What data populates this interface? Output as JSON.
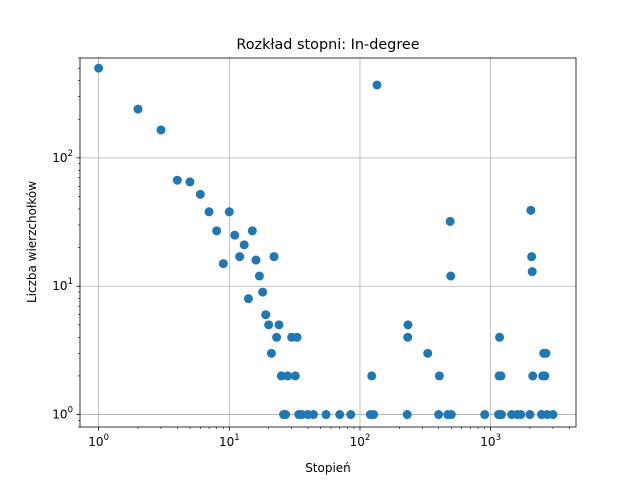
{
  "chart_data": {
    "type": "scatter",
    "title": "Rozkład stopni: In-degree",
    "xlabel": "Stopień",
    "ylabel": "Liczba wierzchołków",
    "xscale": "log",
    "yscale": "log",
    "xlim": [
      0.72,
      4500
    ],
    "ylim": [
      0.8,
      600
    ],
    "grid": true,
    "marker_color": "#1f77b4",
    "x_ticks": [
      {
        "value": 1,
        "base": "10",
        "exp": "0"
      },
      {
        "value": 10,
        "base": "10",
        "exp": "1"
      },
      {
        "value": 100,
        "base": "10",
        "exp": "2"
      },
      {
        "value": 1000,
        "base": "10",
        "exp": "3"
      }
    ],
    "y_ticks": [
      {
        "value": 1,
        "base": "10",
        "exp": "0"
      },
      {
        "value": 10,
        "base": "10",
        "exp": "1"
      },
      {
        "value": 100,
        "base": "10",
        "exp": "2"
      }
    ],
    "points": [
      [
        1,
        500
      ],
      [
        2,
        240
      ],
      [
        3,
        165
      ],
      [
        4,
        67
      ],
      [
        5,
        65
      ],
      [
        6,
        52
      ],
      [
        7,
        38
      ],
      [
        8,
        27
      ],
      [
        9,
        15
      ],
      [
        10,
        38
      ],
      [
        11,
        25
      ],
      [
        12,
        17
      ],
      [
        13,
        21
      ],
      [
        14,
        8
      ],
      [
        15,
        27
      ],
      [
        16,
        16
      ],
      [
        17,
        12
      ],
      [
        18,
        9
      ],
      [
        19,
        6
      ],
      [
        20,
        5
      ],
      [
        21,
        3
      ],
      [
        22,
        17
      ],
      [
        23,
        4
      ],
      [
        24,
        5
      ],
      [
        25,
        2
      ],
      [
        26,
        1
      ],
      [
        27,
        1
      ],
      [
        28,
        2
      ],
      [
        30,
        4
      ],
      [
        32,
        2
      ],
      [
        33,
        4
      ],
      [
        34,
        1
      ],
      [
        36,
        1
      ],
      [
        40,
        1
      ],
      [
        44,
        1
      ],
      [
        55,
        1
      ],
      [
        70,
        1
      ],
      [
        85,
        1
      ],
      [
        120,
        1
      ],
      [
        123,
        2
      ],
      [
        127,
        1
      ],
      [
        135,
        370
      ],
      [
        230,
        1
      ],
      [
        232,
        4
      ],
      [
        233,
        5
      ],
      [
        330,
        3
      ],
      [
        400,
        1
      ],
      [
        405,
        2
      ],
      [
        470,
        1
      ],
      [
        490,
        32
      ],
      [
        495,
        12
      ],
      [
        500,
        1
      ],
      [
        900,
        1
      ],
      [
        1150,
        1
      ],
      [
        1160,
        2
      ],
      [
        1170,
        4
      ],
      [
        1180,
        1
      ],
      [
        1200,
        2
      ],
      [
        1210,
        1
      ],
      [
        1450,
        1
      ],
      [
        1600,
        1
      ],
      [
        1700,
        1
      ],
      [
        2000,
        1
      ],
      [
        2030,
        39
      ],
      [
        2060,
        17
      ],
      [
        2080,
        13
      ],
      [
        2100,
        2
      ],
      [
        2450,
        1
      ],
      [
        2500,
        2
      ],
      [
        2550,
        3
      ],
      [
        2600,
        2
      ],
      [
        2650,
        3
      ],
      [
        2700,
        1
      ],
      [
        3000,
        1
      ]
    ]
  }
}
